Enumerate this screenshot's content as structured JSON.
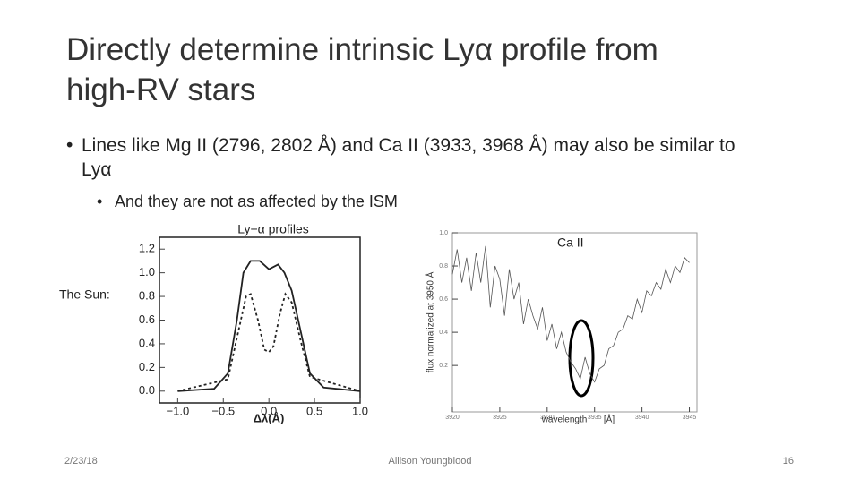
{
  "title": "Directly determine intrinsic Lyα profile from high-RV stars",
  "bullets": [
    {
      "text": "Lines like Mg II (2796, 2802 Å) and Ca II (3933, 3968 Å) may also be similar to Lyα",
      "sub": [
        "And they are not as affected by the ISM"
      ]
    }
  ],
  "labels": {
    "sun": "The Sun:",
    "ca2": "Ca II"
  },
  "footer": {
    "date": "2/23/18",
    "author": "Allison Youngblood",
    "page": "16"
  },
  "charts": [
    {
      "type": "line",
      "title": "Ly−α profiles",
      "xlabel": "Δλ(Å)",
      "xlim": [
        -1.2,
        1.0
      ],
      "ylim": [
        -0.1,
        1.3
      ],
      "xticks": [
        {
          "value": -1.0,
          "label": "−1.0"
        },
        {
          "value": -0.5,
          "label": "−0.5"
        },
        {
          "value": 0.0,
          "label": "0.0"
        },
        {
          "value": 0.5,
          "label": "0.5"
        },
        {
          "value": 1.0,
          "label": "1.0"
        }
      ],
      "yticks": [
        {
          "value": 0.0,
          "label": "0.0"
        },
        0.2,
        0.4,
        0.6,
        0.8,
        {
          "value": 1.0,
          "label": "1.0"
        },
        1.2
      ],
      "series": [
        {
          "color": "#222222",
          "dash": false,
          "x": [
            -1.0,
            -0.6,
            -0.45,
            -0.35,
            -0.28,
            -0.2,
            -0.1,
            0.0,
            0.1,
            0.17,
            0.25,
            0.35,
            0.45,
            0.6,
            1.0
          ],
          "values": [
            0.0,
            0.02,
            0.15,
            0.6,
            1.0,
            1.1,
            1.1,
            1.03,
            1.07,
            1.0,
            0.85,
            0.5,
            0.15,
            0.03,
            0.0
          ]
        },
        {
          "color": "#222222",
          "dash": true,
          "x": [
            -1.0,
            -0.45,
            -0.35,
            -0.25,
            -0.2,
            -0.12,
            -0.05,
            0.0,
            0.05,
            0.12,
            0.18,
            0.25,
            0.35,
            0.45,
            1.0
          ],
          "values": [
            0.0,
            0.1,
            0.45,
            0.8,
            0.82,
            0.6,
            0.35,
            0.33,
            0.38,
            0.65,
            0.82,
            0.75,
            0.42,
            0.12,
            0.0
          ]
        }
      ]
    },
    {
      "type": "line",
      "ylabel": "flux normalized at 3950 Å",
      "xlabel": "wavelength",
      "xunit": "[Å]",
      "xlim": [
        3920,
        3945.8
      ],
      "ylim": [
        -0.08,
        1.0
      ],
      "xticks": [
        3920,
        3925,
        3930,
        3935,
        3940,
        3945
      ],
      "yticks": [
        0.2,
        0.4,
        0.6,
        0.8,
        {
          "value": 1.0,
          "label": "1.0"
        }
      ],
      "series": [
        {
          "color": "#555555",
          "dash": false,
          "x": [
            3920,
            3920.5,
            3921,
            3921.5,
            3922,
            3922.5,
            3923,
            3923.5,
            3924,
            3924.5,
            3925,
            3925.5,
            3926,
            3926.5,
            3927,
            3927.5,
            3928,
            3928.5,
            3929,
            3929.5,
            3930,
            3930.5,
            3931,
            3931.5,
            3932,
            3932.5,
            3933,
            3933.5,
            3934,
            3934.5,
            3935,
            3935.5,
            3936,
            3936.5,
            3937,
            3937.5,
            3938,
            3938.5,
            3939,
            3939.5,
            3940,
            3940.5,
            3941,
            3941.5,
            3942,
            3942.5,
            3943,
            3943.5,
            3944,
            3944.5,
            3945
          ],
          "values": [
            0.75,
            0.9,
            0.7,
            0.85,
            0.65,
            0.88,
            0.7,
            0.92,
            0.55,
            0.8,
            0.72,
            0.5,
            0.78,
            0.6,
            0.7,
            0.45,
            0.6,
            0.5,
            0.42,
            0.55,
            0.35,
            0.45,
            0.3,
            0.4,
            0.28,
            0.22,
            0.18,
            0.12,
            0.25,
            0.15,
            0.1,
            0.18,
            0.2,
            0.3,
            0.32,
            0.4,
            0.42,
            0.5,
            0.48,
            0.6,
            0.52,
            0.65,
            0.62,
            0.7,
            0.66,
            0.78,
            0.7,
            0.8,
            0.76,
            0.85,
            0.82
          ]
        }
      ]
    }
  ]
}
